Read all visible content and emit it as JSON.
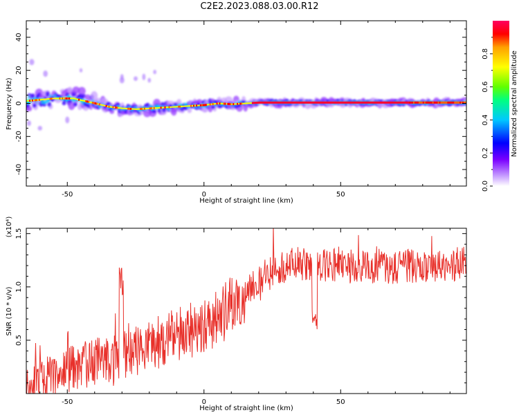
{
  "title": "C2E2.2023.088.03.00.R12",
  "chart_data": [
    {
      "type": "heatmap",
      "xlabel": "Height of straight line (km)",
      "ylabel": "Frequency (Hz)",
      "xlim": [
        -65,
        96
      ],
      "ylim": [
        -50,
        50
      ],
      "xticks": [
        -50,
        0,
        50
      ],
      "yticks": [
        -40,
        -20,
        0,
        20,
        40
      ],
      "colorbar": {
        "label": "Normalized spectral amplitude",
        "range": [
          0.0,
          1.0
        ],
        "ticks": [
          "0.0",
          "0.2",
          "0.4",
          "0.6",
          "0.8"
        ],
        "colors": [
          "#ffffff",
          "#c8a0ff",
          "#7a00ff",
          "#0000ff",
          "#00c8ff",
          "#00ff80",
          "#60ff00",
          "#ffff00",
          "#ffa000",
          "#ff0000",
          "#ff0060"
        ]
      },
      "ridge": {
        "x": [
          -65,
          -55,
          -48,
          -40,
          -35,
          -30,
          -25,
          -20,
          -15,
          -10,
          -5,
          0,
          5,
          10,
          15,
          20,
          30,
          50,
          70,
          96
        ],
        "freq": [
          1.5,
          3,
          3,
          0,
          -2,
          -3,
          -3.5,
          -3,
          -2.5,
          -2,
          -1.5,
          -1,
          0,
          -0.5,
          0,
          0.5,
          0.5,
          0.5,
          0.5,
          0.5
        ]
      }
    },
    {
      "type": "line",
      "xlabel": "Height of straight line (km)",
      "ylabel": "SNR (10 * v/v)",
      "y_multiplier": "(x10⁴)",
      "xlim": [
        -65,
        96
      ],
      "ylim": [
        0,
        1.55
      ],
      "xticks": [
        -50,
        0,
        50
      ],
      "yticks": [
        "0.5",
        "1.0",
        "1.5"
      ],
      "ytick_values": [
        0.5,
        1.0,
        1.5
      ],
      "color": "#e8302a",
      "x": [
        -65,
        -60,
        -55,
        -50,
        -45,
        -40,
        -35,
        -30,
        -25,
        -20,
        -15,
        -10,
        -5,
        0,
        5,
        10,
        15,
        20,
        25,
        30,
        35,
        40,
        45,
        50,
        55,
        60,
        65,
        70,
        75,
        80,
        85,
        90,
        95
      ],
      "y": [
        0.08,
        0.12,
        0.17,
        0.22,
        0.26,
        0.3,
        0.33,
        0.36,
        0.4,
        0.45,
        0.5,
        0.55,
        0.6,
        0.65,
        0.7,
        0.8,
        0.95,
        1.05,
        1.15,
        1.2,
        1.22,
        1.18,
        1.2,
        1.22,
        1.2,
        1.18,
        1.2,
        1.17,
        1.2,
        1.18,
        1.17,
        1.2,
        1.25
      ]
    }
  ]
}
